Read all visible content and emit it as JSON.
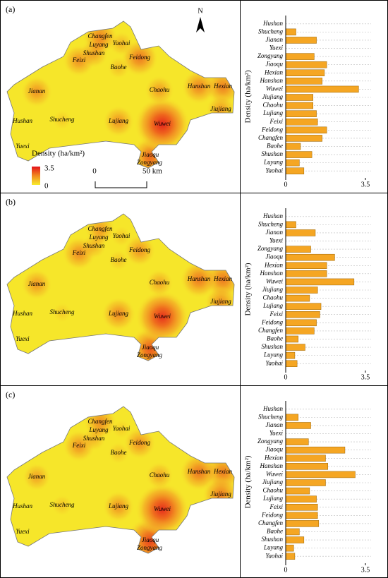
{
  "chart_data": [
    {
      "type": "bar",
      "ylabel": "Density (ha/km²)",
      "categories": [
        "Hushan",
        "Shucheng",
        "Jianan",
        "Yuexi",
        "Zongyang",
        "Jiaoqu",
        "Hexian",
        "Hanshan",
        "Wuwei",
        "Jiujiang",
        "Chaohu",
        "Lujiang",
        "Feixi",
        "Feidong",
        "Changfen",
        "Baohe",
        "Shushan",
        "Luyang",
        "Yaohai"
      ],
      "values": [
        0,
        0.45,
        1.35,
        0,
        1.25,
        1.8,
        1.7,
        1.6,
        3.2,
        1.2,
        1.2,
        1.35,
        1.4,
        1.8,
        1.6,
        0.65,
        1.15,
        0.6,
        0.8
      ],
      "color": "#f5a623",
      "xlim": [
        0,
        3.5
      ],
      "xticks": [
        0,
        3.5
      ]
    },
    {
      "type": "bar",
      "ylabel": "Density (ha/km²)",
      "categories": [
        "Hushan",
        "Shucheng",
        "Jianan",
        "Yuexi",
        "Zongyang",
        "Jiaoqu",
        "Hexian",
        "Hanshan",
        "Wuwei",
        "Jiujiang",
        "Chaohu",
        "Lujiang",
        "Feixi",
        "Feidong",
        "Changfen",
        "Baohe",
        "Shushan",
        "Luyang",
        "Yaohai"
      ],
      "values": [
        0,
        0.45,
        1.3,
        0,
        1.1,
        2.15,
        1.8,
        1.8,
        3.0,
        1.4,
        1.05,
        1.55,
        1.5,
        1.35,
        1.25,
        0.55,
        0.85,
        0.4,
        0.5
      ],
      "color": "#f5a623",
      "xlim": [
        0,
        3.5
      ],
      "xticks": [
        0,
        3.5
      ]
    },
    {
      "type": "bar",
      "ylabel": "Density (ha/km²)",
      "categories": [
        "Hushan",
        "Shucheng",
        "Jianan",
        "Yuexi",
        "Zongyang",
        "Jiaoqu",
        "Hexian",
        "Hanshan",
        "Wuwei",
        "Jiujiang",
        "Chaohu",
        "Lujiang",
        "Feixi",
        "Feidong",
        "Changfen",
        "Baohe",
        "Shushan",
        "Luyang",
        "Yaohai"
      ],
      "values": [
        0,
        0.55,
        1.1,
        0,
        1.0,
        2.6,
        1.75,
        1.85,
        3.05,
        1.75,
        1.05,
        1.35,
        1.4,
        1.4,
        1.45,
        0.6,
        0.8,
        0.35,
        0.4
      ],
      "color": "#f5a623",
      "xlim": [
        0,
        3.5
      ],
      "xticks": [
        0,
        3.5
      ]
    }
  ],
  "maps": [
    {
      "panel": "(a)",
      "north": "N",
      "legend_title": "Density (ha/km²)",
      "legend_ticks": [
        3.5,
        0
      ],
      "scale_labels": [
        "0",
        "50 km"
      ]
    },
    {
      "panel": "(b)"
    },
    {
      "panel": "(c)"
    }
  ]
}
